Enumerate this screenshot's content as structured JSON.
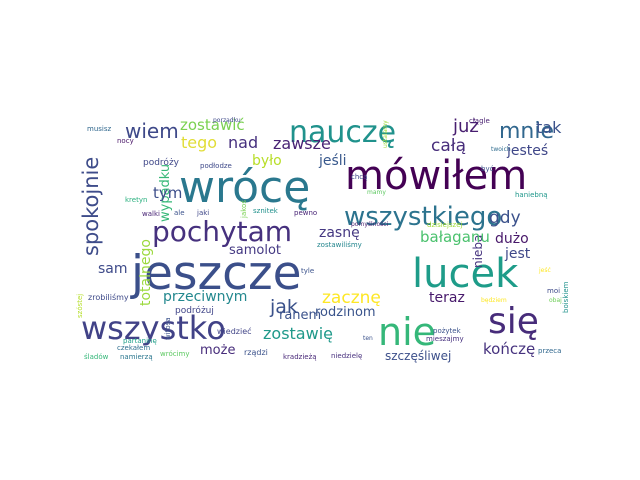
{
  "words": [
    {
      "text": "jeszcze",
      "color": "#3b4f8a"
    },
    {
      "text": "wrócę",
      "color": "#2a788e"
    },
    {
      "text": "mówiłem",
      "color": "#440154"
    },
    {
      "text": "lucek",
      "color": "#1e9c89"
    },
    {
      "text": "nie",
      "color": "#35b779"
    },
    {
      "text": "wszystko",
      "color": "#414287"
    },
    {
      "text": "się",
      "color": "#472c7a"
    },
    {
      "text": "pochytam",
      "color": "#46317e"
    },
    {
      "text": "nauczę",
      "color": "#20928c"
    },
    {
      "text": "wszystkiego",
      "color": "#2c738e"
    },
    {
      "text": "spokojnie",
      "color": "#3e4c8a"
    },
    {
      "text": "mnie",
      "color": "#31678e"
    },
    {
      "text": "wiem",
      "color": "#3e4989"
    },
    {
      "text": "już",
      "color": "#481e70"
    },
    {
      "text": "tak",
      "color": "#3b528b"
    },
    {
      "text": "zostawić",
      "color": "#7ad151"
    },
    {
      "text": "całą",
      "color": "#472d7b"
    },
    {
      "text": "tego",
      "color": "#e1dd37"
    },
    {
      "text": "nad",
      "color": "#46307e"
    },
    {
      "text": "zawsze",
      "color": "#482374"
    },
    {
      "text": "jesteś",
      "color": "#3f4788"
    },
    {
      "text": "totalnego",
      "color": "#9bd93c"
    },
    {
      "text": "wypadku",
      "color": "#37b878"
    },
    {
      "text": "było",
      "color": "#b8de29"
    },
    {
      "text": "jeśli",
      "color": "#38588c"
    },
    {
      "text": "tym",
      "color": "#3d4e8a"
    },
    {
      "text": "gdy",
      "color": "#3b518b"
    },
    {
      "text": "bałaganu",
      "color": "#4ac16d"
    },
    {
      "text": "zasnę",
      "color": "#453882"
    },
    {
      "text": "dużo",
      "color": "#48186a"
    },
    {
      "text": "samolot",
      "color": "#443983"
    },
    {
      "text": "jest",
      "color": "#3f4889"
    },
    {
      "text": "sam",
      "color": "#3e4a89"
    },
    {
      "text": "nieba",
      "color": "#46337f"
    },
    {
      "text": "przeciwnym",
      "color": "#23888e"
    },
    {
      "text": "zacznę",
      "color": "#fde725"
    },
    {
      "text": "jak",
      "color": "#3b528b"
    },
    {
      "text": "teraz",
      "color": "#481a6c"
    },
    {
      "text": "rodzinom",
      "color": "#3a548c"
    },
    {
      "text": "zostawię",
      "color": "#1f998a"
    },
    {
      "text": "ranem",
      "color": "#3b528b"
    },
    {
      "text": "może",
      "color": "#472d7b"
    },
    {
      "text": "kończę",
      "color": "#46327e"
    },
    {
      "text": "szczęśliwej",
      "color": "#3c4f8a"
    },
    {
      "text": "musisz",
      "color": "#31688e"
    },
    {
      "text": "nocy",
      "color": "#481467"
    },
    {
      "text": "podróży",
      "color": "#3f4788"
    },
    {
      "text": "wypadek",
      "color": "#470d60"
    },
    {
      "text": "zrobiliśmy",
      "color": "#3e4a89"
    },
    {
      "text": "podróżuj",
      "color": "#404588"
    },
    {
      "text": "kretyn",
      "color": "#2ab07f"
    },
    {
      "text": "siedzieć",
      "color": "#443b84"
    },
    {
      "text": "wiedzieć",
      "color": "#414487"
    },
    {
      "text": "partaninę",
      "color": "#1f9f88"
    },
    {
      "text": "śladów",
      "color": "#35b779"
    },
    {
      "text": "czekałem",
      "color": "#2e6e8e"
    },
    {
      "text": "namierzą",
      "color": "#2a768e"
    },
    {
      "text": "wrócimy",
      "color": "#5ec962"
    },
    {
      "text": "rządzi",
      "color": "#3b528b"
    },
    {
      "text": "kradzieżą",
      "color": "#482878"
    },
    {
      "text": "niedzielę",
      "color": "#472f7d"
    },
    {
      "text": "przeca",
      "color": "#31688e"
    },
    {
      "text": "moi",
      "color": "#3e4a89"
    },
    {
      "text": "tyle",
      "color": "#3b528b"
    },
    {
      "text": "jaki",
      "color": "#3f4788"
    },
    {
      "text": "sznitek",
      "color": "#21918c"
    },
    {
      "text": "pewno",
      "color": "#482576"
    },
    {
      "text": "chcą",
      "color": "#3e4989"
    },
    {
      "text": "mamy",
      "color": "#5ec962"
    },
    {
      "text": "ciągle",
      "color": "#481f70"
    },
    {
      "text": "twoich",
      "color": "#2f6c8e"
    },
    {
      "text": "być",
      "color": "#3b528b"
    },
    {
      "text": "haniebną",
      "color": "#1f978b"
    },
    {
      "text": "jakoś",
      "color": "#7ad151"
    },
    {
      "text": "walki",
      "color": "#482475"
    },
    {
      "text": "ale",
      "color": "#3b528b"
    },
    {
      "text": "podłodze",
      "color": "#3e4989"
    },
    {
      "text": "pomyślności",
      "color": "#481c6e"
    },
    {
      "text": "zostawiliśmy",
      "color": "#24868e"
    },
    {
      "text": "pożytek",
      "color": "#3b528b"
    },
    {
      "text": "mieszajmy",
      "color": "#46307e"
    },
    {
      "text": "będziem",
      "color": "#fde725"
    },
    {
      "text": "dzisiejszej",
      "color": "#a0da39"
    },
    {
      "text": "boiskiem",
      "color": "#20928c"
    },
    {
      "text": "obaj",
      "color": "#6ece58"
    },
    {
      "text": "szóstej",
      "color": "#b5de2b"
    },
    {
      "text": "witosa",
      "color": "#3b528b"
    },
    {
      "text": "ustalamy",
      "color": "#9fda3a"
    },
    {
      "text": "porządku",
      "color": "#3e4989"
    },
    {
      "text": "jeść",
      "color": "#fde725"
    },
    {
      "text": "ten",
      "color": "#3b528b"
    },
    {
      "text": "wiem",
      "color": "#3b528b"
    }
  ]
}
